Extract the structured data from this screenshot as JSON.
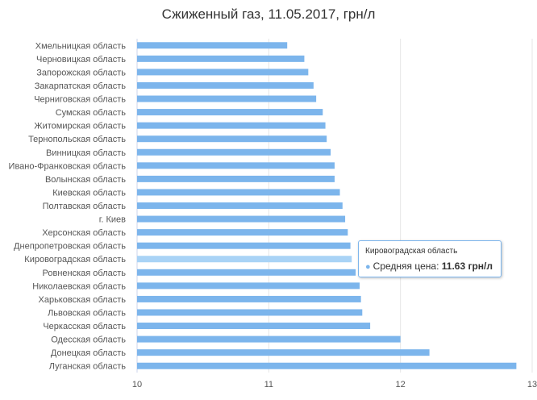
{
  "chart_data": {
    "type": "bar",
    "orientation": "horizontal",
    "title": "Сжиженный газ, 11.05.2017, грн/л",
    "categories": [
      "Хмельницкая область",
      "Черновицкая область",
      "Запорожская область",
      "Закарпатская область",
      "Черниговская область",
      "Сумская область",
      "Житомирская область",
      "Тернопольская область",
      "Винницкая область",
      "Ивано-Франковская область",
      "Волынская область",
      "Киевская область",
      "Полтавская область",
      "г. Киев",
      "Херсонская область",
      "Днепропетровская область",
      "Кировоградская область",
      "Ровненская область",
      "Николаевская область",
      "Харьковская область",
      "Львовская область",
      "Черкасская область",
      "Одесская область",
      "Донецкая область",
      "Луганская область"
    ],
    "series": [
      {
        "name": "Средняя цена",
        "values": [
          11.14,
          11.27,
          11.3,
          11.34,
          11.36,
          11.41,
          11.43,
          11.44,
          11.47,
          11.5,
          11.5,
          11.54,
          11.56,
          11.58,
          11.6,
          11.62,
          11.63,
          11.66,
          11.69,
          11.7,
          11.71,
          11.77,
          12.0,
          12.22,
          12.88
        ]
      }
    ],
    "xlim": [
      10,
      13
    ],
    "ticks": [
      "10",
      "11",
      "12",
      "13"
    ],
    "grid": true,
    "legend": "none",
    "colors": {
      "bar": "#7cb5ec",
      "bar_highlight": "#a9d3f6",
      "grid": "#e6e6e6",
      "axis": "#ccd6eb"
    },
    "highlight_index": 16
  },
  "tooltip": {
    "title": "Кировоградская область",
    "series_label": "Средняя цена:",
    "value": "11.63 грн/л"
  }
}
